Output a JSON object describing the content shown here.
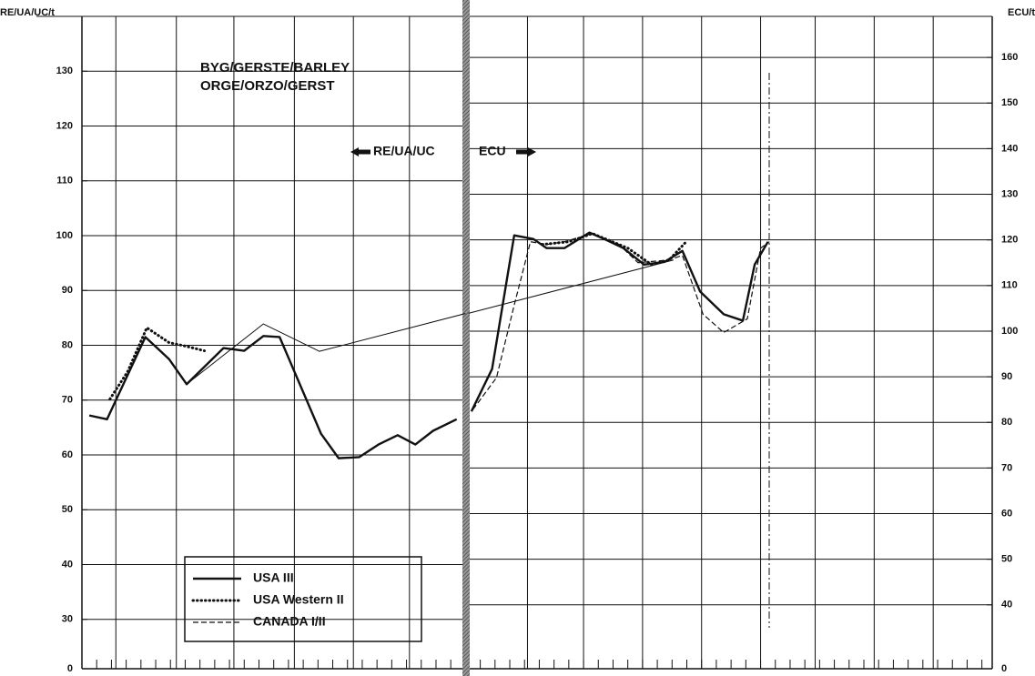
{
  "chart_data": {
    "type": "line",
    "title": "BYG/GERSTE/BARLEY",
    "subtitle": "ORGE/ORZO/GERST",
    "y_label": "RE/UA/UC/t",
    "y2_label": "ECU/t",
    "annotations": [
      {
        "text": "RE/UA/UC",
        "arrow": "left"
      },
      {
        "text": "ECU",
        "arrow": "right"
      }
    ],
    "xlim": [
      0,
      61.7
    ],
    "xticks": [
      2.3,
      6.4,
      10.3,
      14.4,
      18.4,
      22.2,
      30.2,
      34.0,
      38.0,
      42.0,
      46.0,
      49.7,
      53.7,
      57.7
    ],
    "axis_break": true,
    "ylim": [
      21,
      140
    ],
    "yticks": [
      0,
      30,
      40,
      50,
      60,
      70,
      80,
      90,
      100,
      110,
      120,
      130
    ],
    "y2lim": [
      26,
      169
    ],
    "y2ticks": [
      0,
      40,
      50,
      60,
      70,
      80,
      90,
      100,
      110,
      120,
      130,
      140,
      150,
      160
    ],
    "grid": true,
    "legend": "lower left",
    "series": [
      {
        "name": "USA III",
        "color": "#111",
        "style": "solid",
        "axis": "y",
        "x": [
          0.5,
          1.7,
          4.3,
          5.9,
          7.1,
          9.6,
          11.0,
          12.3,
          13.4,
          14.8,
          16.2,
          17.4,
          18.8,
          20.1,
          21.4,
          22.6,
          23.8,
          25.4
        ],
        "values": [
          67.2,
          66.5,
          81.5,
          77.5,
          72.9,
          79.5,
          79.0,
          81.7,
          81.5,
          72.7,
          63.9,
          59.4,
          59.6,
          61.9,
          63.6,
          61.9,
          64.4,
          66.5
        ]
      },
      {
        "name": "USA Western II",
        "color": "#111",
        "style": "dotted",
        "axis": "y",
        "x": [
          1.9,
          3.1,
          4.4,
          5.9,
          7.1,
          8.3
        ],
        "values": [
          70.2,
          75.2,
          83.2,
          80.5,
          79.8,
          79.0
        ]
      },
      {
        "name": "CANADA I/II",
        "color": "#111",
        "style": "dashed",
        "axis": "y2",
        "x": [
          26.5,
          28.1,
          29.3,
          30.4,
          31.5,
          32.7,
          34.6,
          36.4,
          37.7,
          39.8,
          40.7,
          42.1,
          43.5,
          45.1,
          46.0,
          46.6
        ],
        "values": [
          82.8,
          89.8,
          105.7,
          119.6,
          119.0,
          119.6,
          121.4,
          119.0,
          115.0,
          115.6,
          116.6,
          103.7,
          99.7,
          102.7,
          118.2,
          119.6
        ]
      },
      {
        "color": "#111",
        "style": "solid",
        "axis": "y2",
        "x": [
          26.4,
          27.8,
          29.3,
          30.6,
          31.5,
          32.7,
          34.4,
          35.4,
          36.7,
          38.1,
          39.5,
          40.7,
          41.9,
          43.5,
          44.8,
          45.6,
          46.5
        ],
        "values": [
          82.4,
          91.7,
          121.0,
          120.2,
          118.2,
          118.2,
          121.6,
          120.2,
          118.2,
          114.6,
          115.2,
          117.6,
          108.7,
          103.7,
          102.3,
          114.6,
          119.6
        ]
      },
      {
        "color": "#111",
        "style": "dotted",
        "axis": "y2",
        "x": [
          31.2,
          33.0,
          34.6,
          37.0,
          38.6,
          39.8,
          40.9
        ],
        "values": [
          119.0,
          119.6,
          121.4,
          118.2,
          114.6,
          115.6,
          119.4
        ]
      },
      {
        "color": "#111",
        "style": "thin",
        "axis": "y",
        "x": [
          7.1,
          12.3,
          16.1,
          26.0
        ],
        "values": [
          72.9,
          83.9,
          78.9,
          85.8
        ]
      },
      {
        "color": "#111",
        "style": "thin",
        "axis": "y2",
        "x": [
          26.2,
          40.1
        ],
        "values": [
          103.9,
          115.6
        ]
      }
    ]
  }
}
